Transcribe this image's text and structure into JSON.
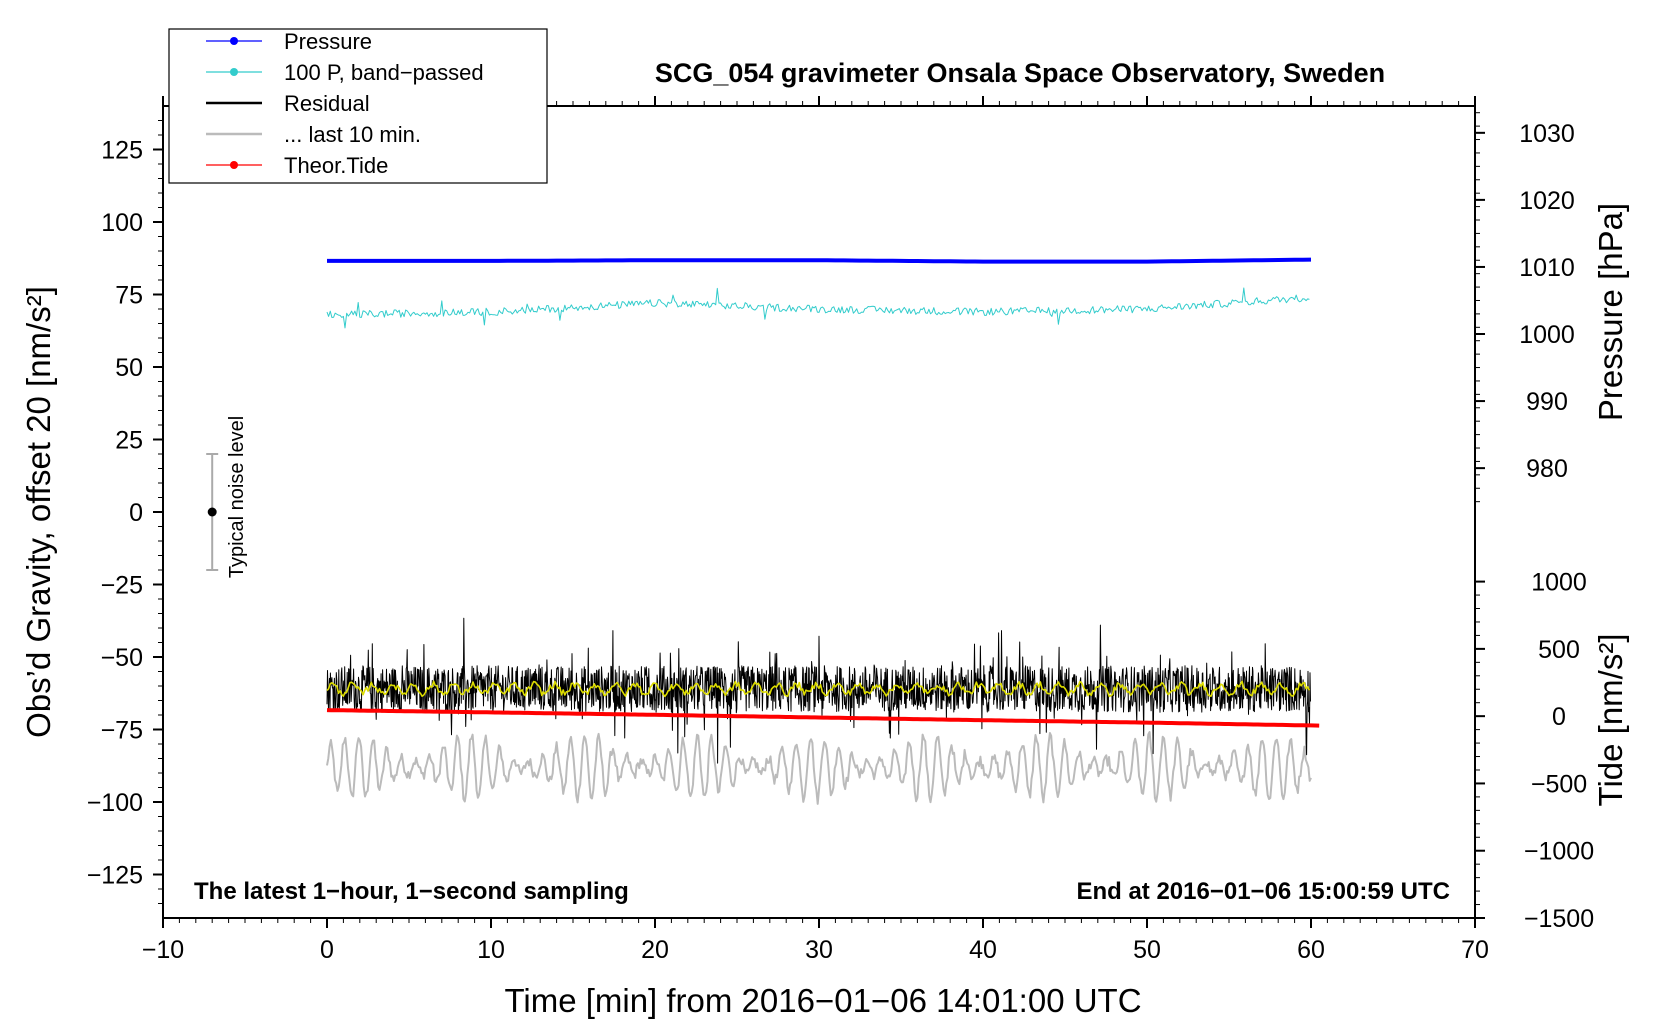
{
  "chart_data": {
    "type": "line",
    "title": "SCG_054 gravimeter Onsala Space Observatory, Sweden",
    "xlabel": "Time [min] from 2016−01−06 14:01:00 UTC",
    "ylabel_left": "Obs’d Gravity, offset 20 [nm/s²]",
    "ylabel_right_pressure": "Pressure [hPa]",
    "ylabel_right_tide": "Tide [nm/s²]",
    "footer_left": "The latest 1−hour, 1−second sampling",
    "footer_right": "End at 2016−01−06 15:00:59 UTC",
    "noise_label": "Typical noise level",
    "noise_level": {
      "x": -7,
      "center": 0,
      "half_range": 20
    },
    "xlim": [
      -10,
      70
    ],
    "ylim_left": [
      -140,
      140
    ],
    "ylim_pressure": [
      970,
      1034
    ],
    "ylim_tide": [
      -1500,
      1000
    ],
    "x_ticks": [
      -10,
      0,
      10,
      20,
      30,
      40,
      50,
      60,
      70
    ],
    "x_tick_labels": [
      "−10",
      "0",
      "10",
      "20",
      "30",
      "40",
      "50",
      "60",
      "70"
    ],
    "y_left_ticks": [
      125,
      100,
      75,
      50,
      25,
      0,
      -25,
      -50,
      -75,
      -100,
      -125
    ],
    "y_left_tick_labels": [
      "125",
      "100",
      "75",
      "50",
      "25",
      "0",
      "−25",
      "−50",
      "−75",
      "−100",
      "−125"
    ],
    "pressure_ticks": [
      1030,
      1020,
      1010,
      1000,
      990,
      980
    ],
    "pressure_tick_labels": [
      "1030",
      "1020",
      "1010",
      "1000",
      "990",
      "980"
    ],
    "tide_ticks": [
      1000,
      500,
      0,
      -500,
      -1000,
      -1500
    ],
    "tide_tick_labels": [
      "1000",
      "500",
      "0",
      "−500",
      "−1000",
      "−1500"
    ],
    "legend": [
      {
        "label": "Pressure",
        "color": "#0000ff",
        "marker": true
      },
      {
        "label": "100 P, band−passed",
        "color": "#33cccc",
        "marker": true
      },
      {
        "label": "Residual",
        "color": "#000000",
        "marker": false
      },
      {
        "label": "... last 10 min.",
        "color": "#bbbbbb",
        "marker": false
      },
      {
        "label": "Theor.Tide",
        "color": "#ff0000",
        "marker": true
      }
    ],
    "series": [
      {
        "name": "Pressure",
        "axis": "pressure",
        "color": "#0000ff",
        "x": [
          0,
          10,
          20,
          30,
          40,
          50,
          60
        ],
        "values": [
          1010.9,
          1010.9,
          1011.0,
          1011.0,
          1010.8,
          1010.8,
          1011.1
        ]
      },
      {
        "name": "100 P, band−passed",
        "axis": "left",
        "color": "#33cccc",
        "x": [
          0,
          10,
          20,
          30,
          40,
          50,
          60
        ],
        "values": [
          68,
          69,
          72,
          70,
          69,
          70,
          74
        ]
      },
      {
        "name": "Residual",
        "axis": "left",
        "color": "#000000",
        "x": [
          0,
          10,
          20,
          30,
          40,
          50,
          60
        ],
        "values": [
          -61,
          -61,
          -61,
          -61,
          -61,
          -61,
          -61
        ]
      },
      {
        "name": "Residual smoothed",
        "axis": "left",
        "color": "#dddd00",
        "x": [
          0,
          10,
          20,
          30,
          40,
          50,
          60
        ],
        "values": [
          -61,
          -61,
          -61,
          -61,
          -61,
          -61,
          -61
        ]
      },
      {
        "name": "... last 10 min.",
        "axis": "left",
        "color": "#bbbbbb",
        "x": [
          0,
          10,
          20,
          30,
          40,
          50,
          60
        ],
        "values": [
          -88,
          -88,
          -88,
          -88,
          -88,
          -88,
          -88
        ]
      },
      {
        "name": "Theor.Tide",
        "axis": "tide",
        "color": "#ff0000",
        "x": [
          0,
          10,
          20,
          30,
          40,
          50,
          60.5
        ],
        "values": [
          45,
          28,
          10,
          -10,
          -30,
          -48,
          -70
        ]
      }
    ]
  }
}
